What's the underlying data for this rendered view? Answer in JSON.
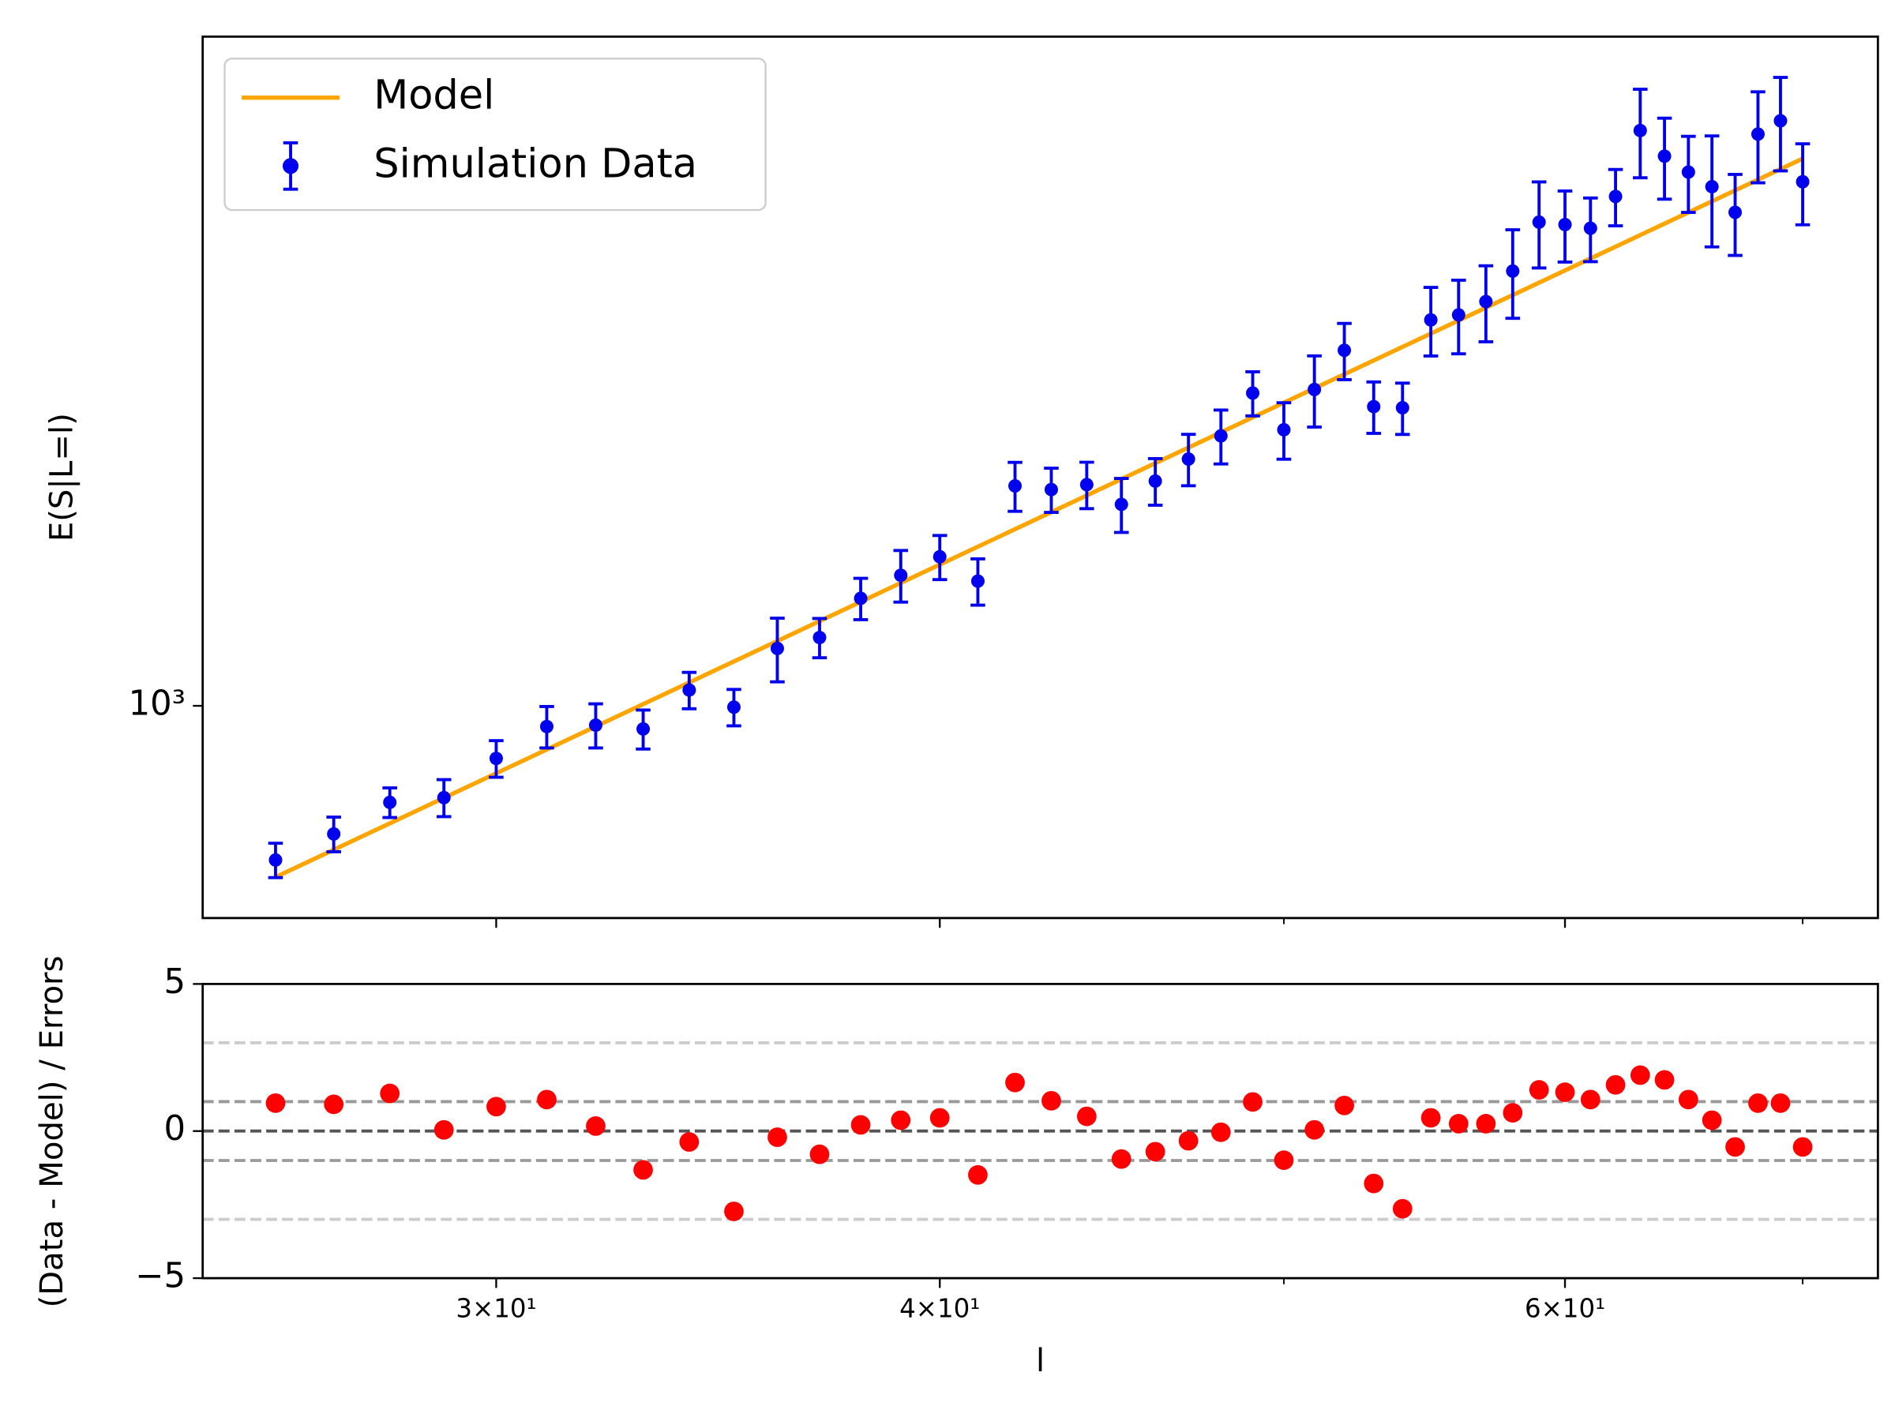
{
  "chart_data": [
    {
      "type": "errorbar",
      "y_label": "E(S|L=l)",
      "ylog": true,
      "ylim": [
        519,
        7910
      ],
      "yticks": [
        {
          "value": 1000,
          "label": "10³"
        }
      ],
      "legend": "upper left",
      "series": [
        {
          "name": "Model",
          "type": "line",
          "color": "#ffa500",
          "x": [
            26,
            70
          ],
          "values": [
            589,
            5425
          ]
        },
        {
          "name": "Simulation Data",
          "type": "errorbar",
          "color": "#0000ee",
          "x": [
            26,
            27,
            28,
            29,
            30,
            31,
            32,
            33,
            34,
            35,
            36,
            37,
            38,
            39,
            40,
            41,
            42,
            43,
            44,
            45,
            46,
            47,
            48,
            49,
            50,
            51,
            52,
            53,
            54,
            55,
            56,
            57,
            58,
            59,
            60,
            61,
            62,
            63,
            64,
            65,
            66,
            67,
            68,
            69,
            70
          ],
          "values": [
            621,
            673,
            742,
            753,
            850,
            938,
            942,
            931,
            1050,
            996,
            1194,
            1235,
            1394,
            1497,
            1585,
            1470,
            1973,
            1951,
            1981,
            1864,
            2003,
            2144,
            2303,
            2629,
            2347,
            2658,
            3000,
            2521,
            2512,
            3296,
            3347,
            3488,
            3833,
            4459,
            4425,
            4375,
            4827,
            5918,
            5467,
            5204,
            4975,
            4595,
            5852,
            6099,
            5051
          ],
          "errors": [
            33,
            36,
            34,
            43,
            48,
            60,
            64,
            56,
            59,
            56,
            117,
            75,
            89,
            119,
            108,
            105,
            149,
            133,
            142,
            155,
            144,
            170,
            191,
            179,
            204,
            291,
            260,
            200,
            199,
            348,
            379,
            408,
            521,
            589,
            484,
            429,
            419,
            804,
            681,
            609,
            845,
            572,
            817,
            875,
            629
          ]
        }
      ]
    },
    {
      "type": "scatter",
      "x_label": "l",
      "y_label": "(Data - Model) / Errors",
      "xlog": true,
      "xlim": [
        24.8,
        73.5
      ],
      "xticks": [
        {
          "value": 30,
          "label": "3×10¹"
        },
        {
          "value": 40,
          "label": "4×10¹"
        },
        {
          "value": 60,
          "label": "6×10¹"
        }
      ],
      "xminor": [
        50,
        70
      ],
      "ylim": [
        -5,
        5
      ],
      "yticks": [
        {
          "value": -5,
          "label": "−5"
        },
        0,
        5
      ],
      "hlines": [
        {
          "y": 3,
          "color": "#cccccc"
        },
        {
          "y": 1,
          "color": "#999999"
        },
        {
          "y": 0,
          "color": "#555555"
        },
        {
          "y": -1,
          "color": "#999999"
        },
        {
          "y": -3,
          "color": "#cccccc"
        }
      ],
      "color": "#ff0000",
      "x": [
        26,
        27,
        28,
        29,
        30,
        31,
        32,
        33,
        34,
        35,
        36,
        37,
        38,
        39,
        40,
        41,
        42,
        43,
        44,
        45,
        46,
        47,
        48,
        49,
        50,
        51,
        52,
        53,
        54,
        55,
        56,
        57,
        58,
        59,
        60,
        61,
        62,
        63,
        64,
        65,
        66,
        67,
        68,
        69,
        70
      ],
      "values": [
        0.95,
        0.91,
        1.28,
        0.04,
        0.83,
        1.07,
        0.17,
        -1.32,
        -0.37,
        -2.73,
        -0.21,
        -0.79,
        0.21,
        0.37,
        0.45,
        -1.49,
        1.65,
        1.03,
        0.5,
        -0.95,
        -0.7,
        -0.33,
        -0.04,
        0.99,
        -0.99,
        0.04,
        0.87,
        -1.78,
        -2.64,
        0.45,
        0.25,
        0.25,
        0.62,
        1.4,
        1.32,
        1.07,
        1.57,
        1.9,
        1.74,
        1.07,
        0.37,
        -0.54,
        0.95,
        0.95,
        -0.54
      ]
    }
  ]
}
